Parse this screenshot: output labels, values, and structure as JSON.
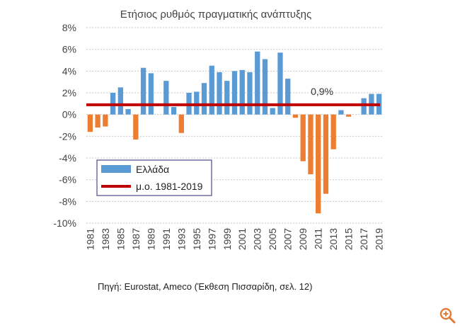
{
  "source_note": "Πηγή: Eurostat, Ameco (Έκθεση Πισσαρίδη, σελ. 12)",
  "zoom_icon": "zoom-in-icon",
  "colors": {
    "bars_positive": "#5b9bd5",
    "bars_negative": "#ed7d31",
    "average_line": "#c00000"
  },
  "chart_data": {
    "type": "bar",
    "title": "Ετήσιος ρυθμός πραγματικής ανάπτυξης",
    "xlabel": "",
    "ylabel": "",
    "ylim": [
      -10,
      8
    ],
    "y_ticks": [
      "-10%",
      "-8%",
      "-6%",
      "-4%",
      "-2%",
      "0%",
      "2%",
      "4%",
      "6%",
      "8%"
    ],
    "x": [
      1981,
      1982,
      1983,
      1984,
      1985,
      1986,
      1987,
      1988,
      1989,
      1990,
      1991,
      1992,
      1993,
      1994,
      1995,
      1996,
      1997,
      1998,
      1999,
      2000,
      2001,
      2002,
      2003,
      2004,
      2005,
      2006,
      2007,
      2008,
      2009,
      2010,
      2011,
      2012,
      2013,
      2014,
      2015,
      2016,
      2017,
      2018,
      2019
    ],
    "x_tick_labels": [
      "1981",
      "1983",
      "1985",
      "1987",
      "1989",
      "1991",
      "1993",
      "1995",
      "1997",
      "1999",
      "2001",
      "2003",
      "2005",
      "2007",
      "2009",
      "2011",
      "2013",
      "2015",
      "2017",
      "2019"
    ],
    "series": [
      {
        "name": "Ελλάδα",
        "type": "bar",
        "values": [
          -1.6,
          -1.2,
          -1.1,
          2.0,
          2.5,
          0.5,
          -2.3,
          4.3,
          3.8,
          0.0,
          3.1,
          0.7,
          -1.7,
          2.0,
          2.1,
          2.9,
          4.5,
          3.9,
          3.1,
          4.0,
          4.1,
          3.9,
          5.8,
          5.1,
          0.6,
          5.7,
          3.3,
          -0.3,
          -4.3,
          -5.5,
          -9.1,
          -7.3,
          -3.2,
          0.4,
          -0.2,
          0.0,
          1.5,
          1.9,
          1.9
        ]
      },
      {
        "name": "μ.ο. 1981-2019",
        "type": "line",
        "value": 0.9
      }
    ],
    "annotations": [
      {
        "text": "0,9%",
        "x": 2011.5,
        "y": 0.9
      }
    ],
    "grid": "horizontal dashed",
    "legend": "left, lower-middle"
  }
}
